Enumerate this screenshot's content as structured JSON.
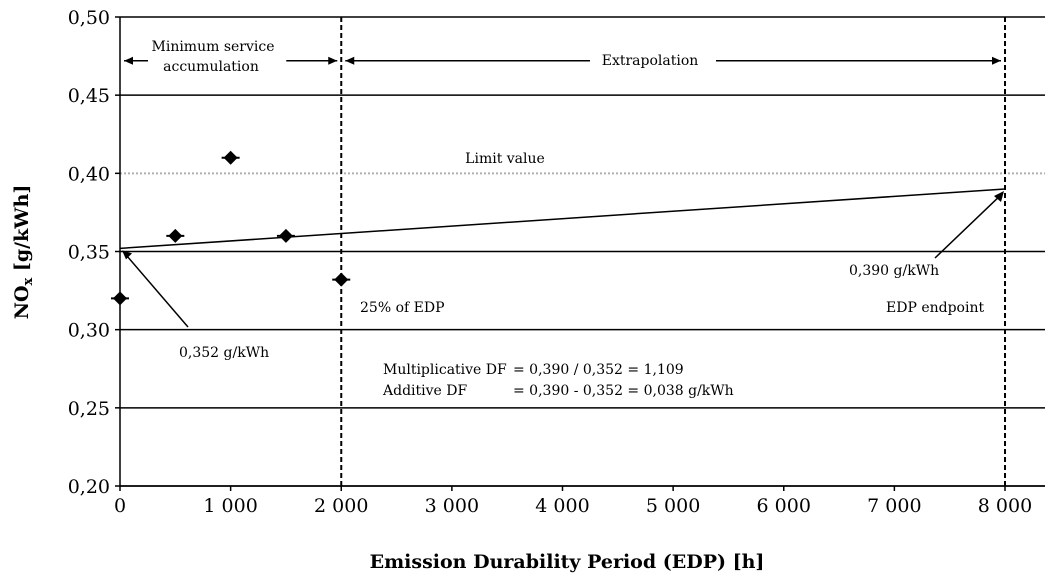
{
  "chart_data": {
    "type": "scatter",
    "xlabel": "Emission Durability Period (EDP) [h]",
    "ylabel_main": "NO",
    "ylabel_sub": "x",
    "ylabel_rest": " [g/kWh]",
    "xlim": [
      0,
      8000
    ],
    "ylim": [
      0.2,
      0.5
    ],
    "x_ticks": [
      0,
      1000,
      2000,
      3000,
      4000,
      5000,
      6000,
      7000,
      8000
    ],
    "x_tick_labels": [
      "0",
      "1 000",
      "2 000",
      "3 000",
      "4 000",
      "5 000",
      "6 000",
      "7 000",
      "8 000"
    ],
    "y_ticks": [
      0.2,
      0.25,
      0.3,
      0.35,
      0.4,
      0.45,
      0.5
    ],
    "y_tick_labels": [
      "0,20",
      "0,25",
      "0,30",
      "0,35",
      "0,40",
      "0,45",
      "0,50"
    ],
    "grid": "horizontal",
    "points": [
      {
        "x": 0,
        "y": 0.32
      },
      {
        "x": 500,
        "y": 0.36
      },
      {
        "x": 1000,
        "y": 0.41
      },
      {
        "x": 1500,
        "y": 0.36
      },
      {
        "x": 2000,
        "y": 0.332
      }
    ],
    "trend_line": {
      "x": [
        0,
        8000
      ],
      "y": [
        0.352,
        0.39
      ]
    },
    "limit_value": 0.4,
    "limit_label": "Limit value",
    "vlines": [
      2000,
      8000
    ],
    "annotations": {
      "min_service_1": "Minimum service",
      "min_service_2": "accumulation",
      "extrapolation": "Extrapolation",
      "edp25": "25% of EDP",
      "edp_end": "EDP endpoint",
      "val_start": "0,352 g/kWh",
      "val_end": "0,390 g/kWh",
      "mult_label": "Multiplicative DF",
      "mult_eq": "= 0,390 / 0,352 = 1,109",
      "add_label": "Additive DF",
      "add_eq": "= 0,390 - 0,352 = 0,038 g/kWh"
    }
  }
}
